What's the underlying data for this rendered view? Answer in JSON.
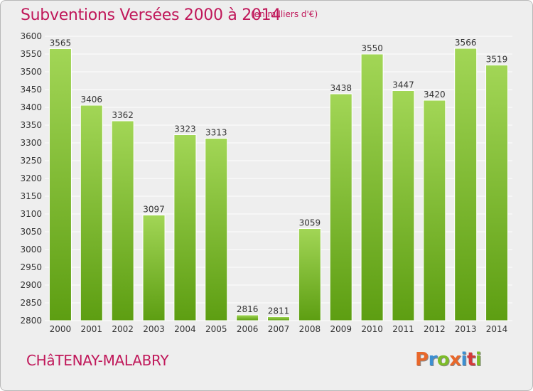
{
  "header": {
    "title": "Subventions Versées 2000 à 2014",
    "subtitle": "(en milliers d'€)"
  },
  "footer": {
    "commune": "CHâTENAY-MALABRY",
    "logo_text": "Proxiti",
    "logo_colors": [
      "#e8672a",
      "#3c8fd2",
      "#7cbc28",
      "#e8672a",
      "#3c8fd2",
      "#d33a3a",
      "#7cbc28"
    ]
  },
  "colors": {
    "title": "#c0185a",
    "bar_top": "#a2d656",
    "bar_bottom": "#5d9e12",
    "panel": "#eeeeee",
    "gridline": "#ffffff",
    "axis_text": "#333333",
    "value_label": "#333333"
  },
  "chart_data": {
    "type": "bar",
    "categories": [
      "2000",
      "2001",
      "2002",
      "2003",
      "2004",
      "2005",
      "2006",
      "2007",
      "2008",
      "2009",
      "2010",
      "2011",
      "2012",
      "2013",
      "2014"
    ],
    "values": [
      3565,
      3406,
      3362,
      3097,
      3323,
      3313,
      2816,
      2811,
      3059,
      3438,
      3550,
      3447,
      3420,
      3566,
      3519
    ],
    "title": "Subventions Versées 2000 à 2014",
    "unit": "(en milliers d'€)",
    "xlabel": "",
    "ylabel": "",
    "ylim": [
      2800,
      3600
    ],
    "yticks": [
      2800,
      2850,
      2900,
      2950,
      3000,
      3050,
      3100,
      3150,
      3200,
      3250,
      3300,
      3350,
      3400,
      3450,
      3500,
      3550,
      3600
    ],
    "grid": true,
    "data_labels": true
  }
}
